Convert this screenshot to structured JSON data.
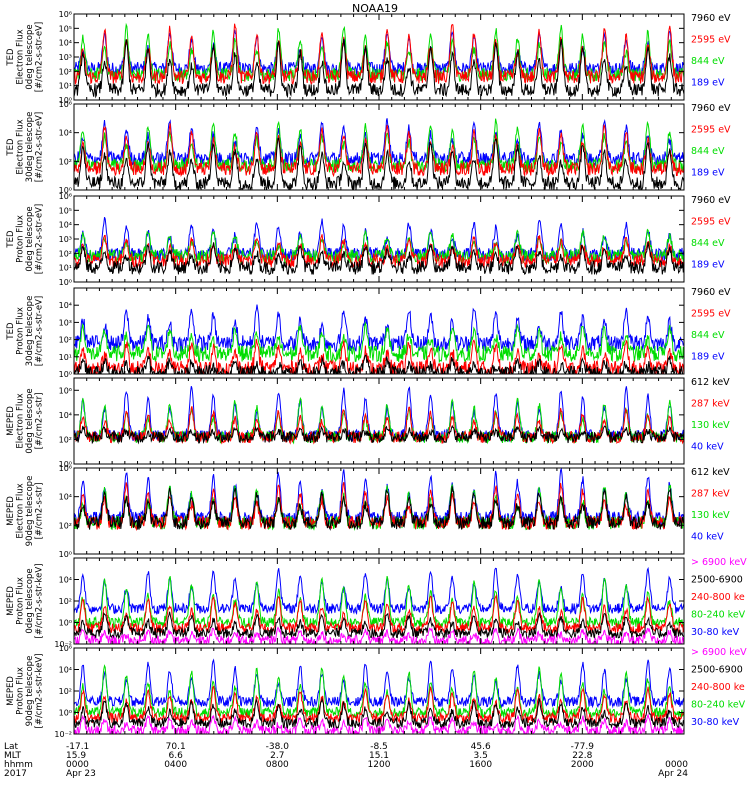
{
  "title": "NOAA19",
  "colors": {
    "c0": "#0000ff",
    "c1": "#ff0000",
    "c2": "#00dd00",
    "c3": "#000000",
    "pink": "#ff00ff"
  },
  "panels": [
    {
      "name": "ted-electron-0deg",
      "ylabel_lines": [
        "TED",
        "Electron Flux",
        "0deg telescope",
        "[#/cm2-s-str-eV]"
      ],
      "ylim": [
        1,
        1000000
      ],
      "ytick_exps": [
        0,
        1,
        2,
        3,
        4,
        5,
        6
      ],
      "ytick_labels": [
        "10⁰",
        "10¹",
        "10²",
        "10³",
        "10⁴",
        "10⁵",
        "10⁶"
      ],
      "legend": [
        {
          "label": "7960 eV",
          "color": "#000000"
        },
        {
          "label": "2595 eV",
          "color": "#ff0000"
        },
        {
          "label": "844 eV",
          "color": "#00dd00"
        },
        {
          "label": "189 eV",
          "color": "#0000ff"
        }
      ]
    },
    {
      "name": "ted-electron-30deg",
      "ylabel_lines": [
        "TED",
        "Electron Flux",
        "30deg telescope",
        "[#/cm2-s-str-eV]"
      ],
      "ylim": [
        1,
        1000000
      ],
      "ytick_exps": [
        0,
        2,
        4,
        6
      ],
      "ytick_labels": [
        "10⁰",
        "10²",
        "10⁴",
        "10⁶"
      ],
      "legend": [
        {
          "label": "7960 eV",
          "color": "#000000"
        },
        {
          "label": "2595 eV",
          "color": "#ff0000"
        },
        {
          "label": "844 eV",
          "color": "#00dd00"
        },
        {
          "label": "189 eV",
          "color": "#0000ff"
        }
      ]
    },
    {
      "name": "ted-proton-0deg",
      "ylabel_lines": [
        "TED",
        "Proton Flux",
        "0deg telescope",
        "[#/cm2-s-str-eV]"
      ],
      "ylim": [
        1,
        1000000
      ],
      "ytick_exps": [
        0,
        1,
        2,
        3,
        4,
        5,
        6
      ],
      "ytick_labels": [
        "10⁰",
        "10¹",
        "10²",
        "10³",
        "10⁴",
        "10⁵",
        "10⁶"
      ],
      "legend": [
        {
          "label": "7960 eV",
          "color": "#000000"
        },
        {
          "label": "2595 eV",
          "color": "#ff0000"
        },
        {
          "label": "844 eV",
          "color": "#00dd00"
        },
        {
          "label": "189 eV",
          "color": "#0000ff"
        }
      ]
    },
    {
      "name": "ted-proton-30deg",
      "ylabel_lines": [
        "TED",
        "Proton Flux",
        "30deg telescope",
        "[#/cm2-s-str-eV]"
      ],
      "ylim": [
        1,
        100000
      ],
      "ytick_exps": [
        0,
        1,
        2,
        3,
        4
      ],
      "ytick_labels": [
        "10⁰",
        "10¹",
        "10²",
        "10³",
        "10⁴"
      ],
      "legend": [
        {
          "label": "7960 eV",
          "color": "#000000"
        },
        {
          "label": "2595 eV",
          "color": "#ff0000"
        },
        {
          "label": "844 eV",
          "color": "#00dd00"
        },
        {
          "label": "189 eV",
          "color": "#0000ff"
        }
      ]
    },
    {
      "name": "meped-electron-0deg",
      "ylabel_lines": [
        "MEPED",
        "Electron Flux",
        "0deg telescope",
        "[#/cm2-s-str]"
      ],
      "ylim": [
        1,
        10000000
      ],
      "ytick_exps": [
        0,
        2,
        4,
        6
      ],
      "ytick_labels": [
        "10⁰",
        "10²",
        "10⁴",
        "10⁶"
      ],
      "legend": [
        {
          "label": "612 keV",
          "color": "#000000"
        },
        {
          "label": "287 keV",
          "color": "#ff0000"
        },
        {
          "label": "130 keV",
          "color": "#00dd00"
        },
        {
          "label": "40 keV",
          "color": "#0000ff"
        }
      ]
    },
    {
      "name": "meped-electron-90deg",
      "ylabel_lines": [
        "MEPED",
        "Electron Flux",
        "90deg telescope",
        "[#/cm2-s-str]"
      ],
      "ylim": [
        1,
        1000000
      ],
      "ytick_exps": [
        0,
        2,
        4,
        6
      ],
      "ytick_labels": [
        "10⁰",
        "10²",
        "10⁴",
        "10⁶"
      ],
      "legend": [
        {
          "label": "612 keV",
          "color": "#000000"
        },
        {
          "label": "287 keV",
          "color": "#ff0000"
        },
        {
          "label": "130 keV",
          "color": "#00dd00"
        },
        {
          "label": "40 keV",
          "color": "#0000ff"
        }
      ]
    },
    {
      "name": "meped-proton-0deg",
      "ylabel_lines": [
        "MEPED",
        "Proton Flux",
        "0deg telescope",
        "[#/cm2-s-str-keV]"
      ],
      "ylim": [
        0.01,
        1000000
      ],
      "ytick_exps": [
        -2,
        0,
        2,
        4
      ],
      "ytick_labels": [
        "10⁻²",
        "10⁰",
        "10²",
        "10⁴"
      ],
      "legend": [
        {
          "label": "> 6900 keV",
          "color": "#ff00ff"
        },
        {
          "label": "2500-6900",
          "color": "#000000"
        },
        {
          "label": "240-800 ke",
          "color": "#ff0000"
        },
        {
          "label": "80-240 keV",
          "color": "#00dd00"
        },
        {
          "label": "30-80 keV",
          "color": "#0000ff"
        }
      ]
    },
    {
      "name": "meped-proton-90deg",
      "ylabel_lines": [
        "MEPED",
        "Proton Flux",
        "90deg telescope",
        "[#/cm2-s-str-keV]"
      ],
      "ylim": [
        0.01,
        1000000
      ],
      "ytick_exps": [
        -2,
        0,
        2,
        4,
        6
      ],
      "ytick_labels": [
        "10⁻²",
        "10⁰",
        "10²",
        "10⁴",
        "10⁶"
      ],
      "legend": [
        {
          "label": "> 6900 keV",
          "color": "#ff00ff"
        },
        {
          "label": "2500-6900",
          "color": "#000000"
        },
        {
          "label": "240-800 ke",
          "color": "#ff0000"
        },
        {
          "label": "80-240 keV",
          "color": "#00dd00"
        },
        {
          "label": "30-80 keV",
          "color": "#0000ff"
        }
      ]
    }
  ],
  "xaxis": {
    "row_labels": [
      "Lat",
      "MLT",
      "hhmm",
      "2017"
    ],
    "ticks": [
      {
        "hour": 0,
        "lat": "-17.1",
        "mlt": "15.9",
        "hhmm": "0000",
        "date": "Apr 23"
      },
      {
        "hour": 4,
        "lat": "70.1",
        "mlt": "6.6",
        "hhmm": "0400",
        "date": ""
      },
      {
        "hour": 8,
        "lat": "-38.0",
        "mlt": "2.7",
        "hhmm": "0800",
        "date": ""
      },
      {
        "hour": 12,
        "lat": "-8.5",
        "mlt": "15.1",
        "hhmm": "1200",
        "date": ""
      },
      {
        "hour": 16,
        "lat": "45.6",
        "mlt": "3.5",
        "hhmm": "1600",
        "date": ""
      },
      {
        "hour": 20,
        "lat": "-77.9",
        "mlt": "22.8",
        "hhmm": "2000",
        "date": ""
      },
      {
        "hour": 24,
        "lat": "",
        "mlt": "",
        "hhmm": "0000",
        "date": "Apr 24"
      }
    ],
    "range_hours": [
      0,
      24
    ],
    "minor_step_hours": 0.5
  },
  "chart_data": {
    "type": "line",
    "title": "NOAA19",
    "xlabel": "hhmm",
    "x_range_hours": [
      0,
      24
    ],
    "orbit_period_hours": 1.71,
    "panels": [
      {
        "name": "TED Electron Flux 0deg telescope",
        "yscale": "log",
        "ylim": [
          1,
          1000000
        ],
        "series": [
          {
            "name": "189 eV",
            "baseline": 150,
            "peak": 100000
          },
          {
            "name": "844 eV",
            "baseline": 60,
            "peak": 200000
          },
          {
            "name": "2595 eV",
            "baseline": 40,
            "peak": 300000
          },
          {
            "name": "7960 eV",
            "baseline": 5,
            "peak": 20000
          }
        ]
      },
      {
        "name": "TED Electron Flux 30deg telescope",
        "yscale": "log",
        "ylim": [
          1,
          1000000
        ],
        "series": [
          {
            "name": "189 eV",
            "baseline": 150,
            "peak": 100000
          },
          {
            "name": "844 eV",
            "baseline": 50,
            "peak": 100000
          },
          {
            "name": "2595 eV",
            "baseline": 30,
            "peak": 50000
          },
          {
            "name": "7960 eV",
            "baseline": 3,
            "peak": 5000
          }
        ]
      },
      {
        "name": "TED Proton Flux 0deg telescope",
        "yscale": "log",
        "ylim": [
          1,
          1000000
        ],
        "series": [
          {
            "name": "189 eV",
            "baseline": 80,
            "peak": 30000
          },
          {
            "name": "844 eV",
            "baseline": 60,
            "peak": 5000
          },
          {
            "name": "2595 eV",
            "baseline": 30,
            "peak": 2000
          },
          {
            "name": "7960 eV",
            "baseline": 10,
            "peak": 500
          }
        ]
      },
      {
        "name": "TED Proton Flux 30deg telescope",
        "yscale": "log",
        "ylim": [
          1,
          100000
        ],
        "series": [
          {
            "name": "189 eV",
            "baseline": 60,
            "peak": 10000
          },
          {
            "name": "844 eV",
            "baseline": 15,
            "peak": 1000
          },
          {
            "name": "2595 eV",
            "baseline": 2,
            "peak": 100
          },
          {
            "name": "7960 eV",
            "baseline": 1,
            "peak": 10
          }
        ]
      },
      {
        "name": "MEPED Electron Flux 0deg telescope",
        "yscale": "log",
        "ylim": [
          1,
          10000000
        ],
        "series": [
          {
            "name": "40 keV",
            "baseline": 200,
            "peak": 3000000
          },
          {
            "name": "130 keV",
            "baseline": 150,
            "peak": 300000
          },
          {
            "name": "287 keV",
            "baseline": 150,
            "peak": 50000
          },
          {
            "name": "612 keV",
            "baseline": 150,
            "peak": 1000
          }
        ]
      },
      {
        "name": "MEPED Electron Flux 90deg telescope",
        "yscale": "log",
        "ylim": [
          1,
          1000000
        ],
        "series": [
          {
            "name": "40 keV",
            "baseline": 300,
            "peak": 1000000
          },
          {
            "name": "130 keV",
            "baseline": 150,
            "peak": 100000
          },
          {
            "name": "287 keV",
            "baseline": 150,
            "peak": 100000
          },
          {
            "name": "612 keV",
            "baseline": 150,
            "peak": 50000
          }
        ]
      },
      {
        "name": "MEPED Proton Flux 0deg telescope",
        "yscale": "log",
        "ylim": [
          0.01,
          1000000
        ],
        "series": [
          {
            "name": "30-80 keV",
            "baseline": 20,
            "peak": 200000
          },
          {
            "name": "80-240 keV",
            "baseline": 1,
            "peak": 30000
          },
          {
            "name": "240-800 ke",
            "baseline": 0.3,
            "peak": 500
          },
          {
            "name": "2500-6900",
            "baseline": 0.1,
            "peak": 10
          },
          {
            "name": "> 6900 keV",
            "baseline": 0.02,
            "peak": 0.3
          }
        ]
      },
      {
        "name": "MEPED Proton Flux 90deg telescope",
        "yscale": "log",
        "ylim": [
          0.01,
          1000000
        ],
        "series": [
          {
            "name": "30-80 keV",
            "baseline": 10,
            "peak": 100000
          },
          {
            "name": "80-240 keV",
            "baseline": 1,
            "peak": 30000
          },
          {
            "name": "240-800 ke",
            "baseline": 0.3,
            "peak": 300
          },
          {
            "name": "2500-6900",
            "baseline": 0.1,
            "peak": 20
          },
          {
            "name": "> 6900 keV",
            "baseline": 0.02,
            "peak": 0.5
          }
        ]
      }
    ]
  }
}
